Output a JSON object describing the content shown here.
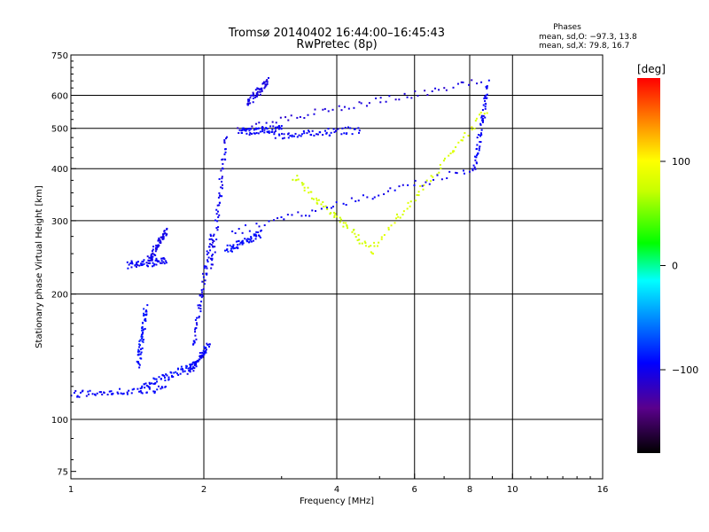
{
  "header": {
    "title_line1": "Tromsø 20140402 16:44:00–16:45:43",
    "title_line2": "RwPretec (8p)",
    "stats_title": "Phases",
    "stats_line1": "mean, sd,O: −97.3, 13.8",
    "stats_line2": "mean, sd,X:  79.8, 16.7"
  },
  "colorbar": {
    "unit_label": "[deg]",
    "tick_labels": [
      "100",
      "0",
      "−100"
    ],
    "tick_values": [
      100,
      0,
      -100
    ],
    "range": [
      -180,
      180
    ]
  },
  "chart_data": {
    "type": "scatter",
    "title": "Tromsø 20140402 16:44:00–16:45:43",
    "subtitle": "RwPretec (8p)",
    "xlabel": "Frequency [MHz]",
    "ylabel": "Stationary phase Virtual Height [km]",
    "xscale": "log",
    "yscale": "log",
    "xlim": [
      1,
      16
    ],
    "ylim": [
      72,
      750
    ],
    "x_ticks": [
      1,
      2,
      4,
      6,
      8,
      10,
      16
    ],
    "x_tick_labels": [
      "1",
      "2",
      "4",
      "6",
      "8",
      "10",
      "16"
    ],
    "y_ticks": [
      75,
      100,
      200,
      300,
      400,
      500,
      600,
      750
    ],
    "y_tick_labels": [
      "75",
      "100",
      "200",
      "300",
      "400",
      "500",
      "600",
      "750"
    ],
    "x_gridlines": [
      2,
      4,
      6,
      8,
      10
    ],
    "y_gridlines": [
      100,
      200,
      300,
      400,
      500,
      600
    ],
    "grid": true,
    "color_variable": "phase [deg]",
    "segments": [
      {
        "phase": -95,
        "x_from": 1.0,
        "x_to": 1.65,
        "y_from": 115,
        "y_to": 118
      },
      {
        "phase": -92,
        "x_from": 1.45,
        "x_to": 1.9,
        "y_from": 120,
        "y_to": 135
      },
      {
        "phase": -90,
        "x_from": 1.42,
        "x_to": 1.48,
        "y_from": 135,
        "y_to": 185
      },
      {
        "phase": -95,
        "x_from": 1.85,
        "x_to": 2.05,
        "y_from": 130,
        "y_to": 150
      },
      {
        "phase": -98,
        "x_from": 1.9,
        "x_to": 2.08,
        "y_from": 150,
        "y_to": 280
      },
      {
        "phase": -100,
        "x_from": 2.08,
        "x_to": 2.25,
        "y_from": 230,
        "y_to": 480
      },
      {
        "phase": -96,
        "x_from": 1.35,
        "x_to": 1.65,
        "y_from": 235,
        "y_to": 240
      },
      {
        "phase": -102,
        "x_from": 1.5,
        "x_to": 1.65,
        "y_from": 240,
        "y_to": 285
      },
      {
        "phase": -92,
        "x_from": 2.25,
        "x_to": 2.7,
        "y_from": 255,
        "y_to": 280
      },
      {
        "phase": -108,
        "x_from": 2.4,
        "x_to": 8.5,
        "y_from": 500,
        "y_to": 650
      },
      {
        "phase": -96,
        "x_from": 2.4,
        "x_to": 3.0,
        "y_from": 490,
        "y_to": 500
      },
      {
        "phase": -96,
        "x_from": 2.9,
        "x_to": 4.5,
        "y_from": 480,
        "y_to": 495
      },
      {
        "phase": -103,
        "x_from": 2.5,
        "x_to": 2.8,
        "y_from": 570,
        "y_to": 650
      },
      {
        "phase": 78,
        "x_from": 3.2,
        "x_to": 4.8,
        "y_from": 380,
        "y_to": 255
      },
      {
        "phase": 82,
        "x_from": 4.8,
        "x_to": 8.7,
        "y_from": 255,
        "y_to": 550
      },
      {
        "phase": -98,
        "x_from": 2.3,
        "x_to": 8.2,
        "y_from": 280,
        "y_to": 400
      },
      {
        "phase": -96,
        "x_from": 8.2,
        "x_to": 8.8,
        "y_from": 400,
        "y_to": 640
      }
    ]
  }
}
